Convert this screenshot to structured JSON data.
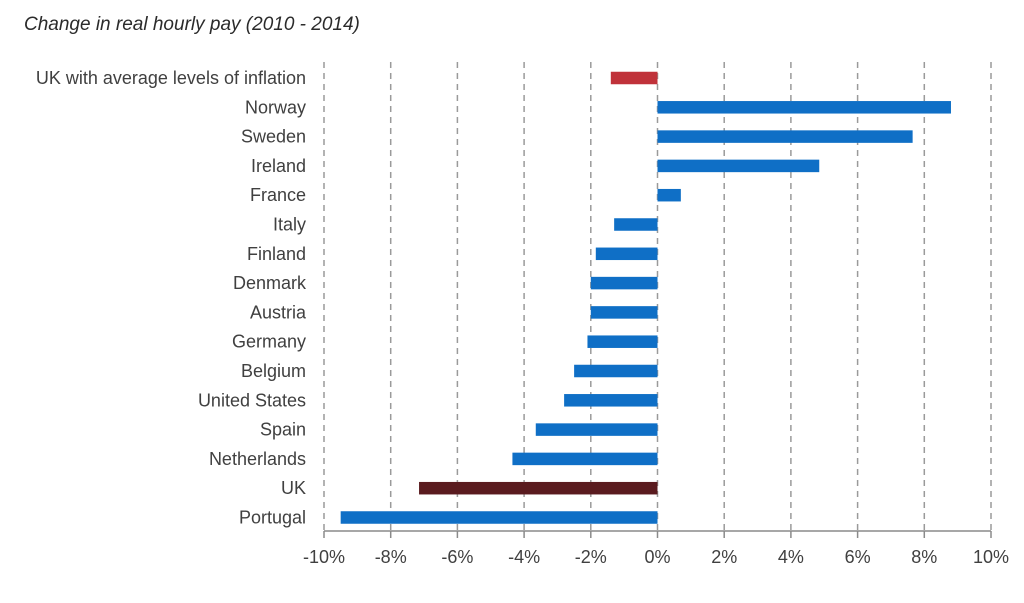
{
  "chart_data": {
    "type": "bar",
    "orientation": "horizontal",
    "title": "Change in real hourly pay (2010 - 2014)",
    "xlabel": "",
    "ylabel": "",
    "xlim": [
      -10,
      10
    ],
    "x_ticks": [
      "-10%",
      "-8%",
      "-6%",
      "-4%",
      "-2%",
      "0%",
      "2%",
      "4%",
      "6%",
      "8%",
      "10%"
    ],
    "grid": "vertical dashed",
    "colors": {
      "default": "#0f6fc6",
      "uk_average_inflation": "#c0323a",
      "uk": "#5a1b1f",
      "axis": "#8a8a8a",
      "grid": "#9a9a9a",
      "text": "#404040"
    },
    "categories": [
      "UK with average levels of inflation",
      "Norway",
      "Sweden",
      "Ireland",
      "France",
      "Italy",
      "Finland",
      "Denmark",
      "Austria",
      "Germany",
      "Belgium",
      "United States",
      "Spain",
      "Netherlands",
      "UK",
      "Portugal"
    ],
    "values": [
      -1.4,
      8.8,
      7.65,
      4.85,
      0.7,
      -1.3,
      -1.85,
      -2.0,
      -2.0,
      -2.1,
      -2.5,
      -2.8,
      -3.65,
      -4.35,
      -7.15,
      -9.5
    ],
    "bar_colors": [
      "#c0323a",
      "#0f6fc6",
      "#0f6fc6",
      "#0f6fc6",
      "#0f6fc6",
      "#0f6fc6",
      "#0f6fc6",
      "#0f6fc6",
      "#0f6fc6",
      "#0f6fc6",
      "#0f6fc6",
      "#0f6fc6",
      "#0f6fc6",
      "#0f6fc6",
      "#5a1b1f",
      "#0f6fc6"
    ]
  }
}
